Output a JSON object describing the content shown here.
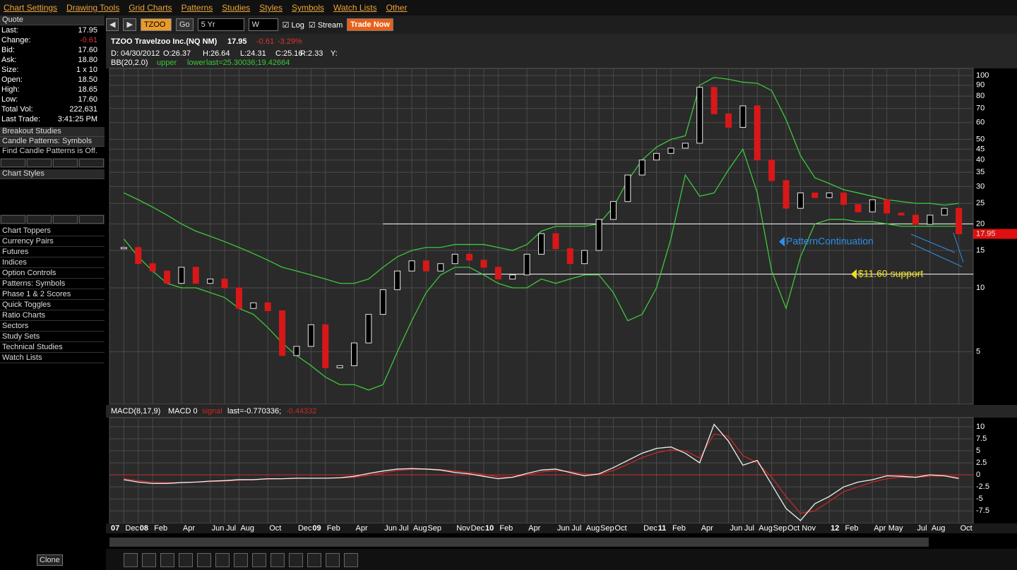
{
  "menu": [
    "Chart Settings",
    "Drawing Tools",
    "Grid Charts",
    "Patterns",
    "Studies",
    "Styles",
    "Symbols",
    "Watch Lists",
    "Other"
  ],
  "toolbar": {
    "symbol": "TZOO",
    "go": "Go",
    "period": "5 Yr",
    "interval": "W",
    "log": "Log",
    "stream": "Stream",
    "trade": "Trade Now"
  },
  "sidebar": {
    "quote_title": "Quote",
    "quote": [
      {
        "label": "Last:",
        "value": "17.95"
      },
      {
        "label": "Change:",
        "value": "-0.61"
      },
      {
        "label": "Bid:",
        "value": "17.60"
      },
      {
        "label": "Ask:",
        "value": "18.80"
      },
      {
        "label": "Size:",
        "value": "1 x 10"
      },
      {
        "label": "Open:",
        "value": "18.50"
      },
      {
        "label": "High:",
        "value": "18.65"
      },
      {
        "label": "Low:",
        "value": "17.60"
      },
      {
        "label": "Total Vol:",
        "value": "222,631"
      },
      {
        "label": "Last Trade:",
        "value": "3:41:25 PM"
      }
    ],
    "breakout": "Breakout Studies",
    "candle": "Candle Patterns: Symbols",
    "candle_note": "Find Candle Patterns is Off.",
    "styles": "Chart Styles",
    "items": [
      "Chart Toppers",
      "Currency Pairs",
      "Futures",
      "Indices",
      "Option Controls",
      "Patterns: Symbols",
      "Phase 1 & 2 Scores",
      "Quick Toggles",
      "Ratio Charts",
      "Sectors",
      "Study Sets",
      "Technical Studies",
      "Watch Lists"
    ],
    "clone": "Clone"
  },
  "chart": {
    "type": "candlestick",
    "title": "TZOO Travelzoo Inc.(NQ NM)",
    "price": "17.95",
    "change": "-0.61",
    "change_pct": "-3.29%",
    "info": [
      "D: 04/30/2012",
      "O:26.37",
      "H:26.64",
      "L:24.31",
      "C:25.16",
      "R:2.33",
      "Y:"
    ],
    "bb": {
      "name": "BB(20,2.0)",
      "upper": "upper",
      "lower": "lower",
      "last": "last=25.30036;19.42664"
    },
    "macd_header": {
      "name": "MACD(8,17,9)",
      "macd": "MACD 0",
      "signal": "signal",
      "last": "last=-0.770336;",
      "last_signal": "-0.44332"
    },
    "log": true,
    "grid": true,
    "x": [
      "2007-12",
      "2008-01",
      "2008-02",
      "2008-03",
      "2008-04",
      "2008-05",
      "2008-06",
      "2008-07",
      "2008-08",
      "2008-09",
      "2008-10",
      "2008-11",
      "2008-12",
      "2009-01",
      "2009-02",
      "2009-03",
      "2009-04",
      "2009-05",
      "2009-06",
      "2009-07",
      "2009-08",
      "2009-09",
      "2009-10",
      "2009-11",
      "2009-12",
      "2010-01",
      "2010-02",
      "2010-03",
      "2010-04",
      "2010-05",
      "2010-06",
      "2010-07",
      "2010-08",
      "2010-09",
      "2010-10",
      "2010-11",
      "2010-12",
      "2011-01",
      "2011-02",
      "2011-03",
      "2011-04",
      "2011-05",
      "2011-06",
      "2011-07",
      "2011-08",
      "2011-09",
      "2011-10",
      "2011-11",
      "2011-12",
      "2012-01",
      "2012-02",
      "2012-03",
      "2012-04",
      "2012-05",
      "2012-06",
      "2012-07",
      "2012-08",
      "2012-09",
      "2012-10"
    ],
    "close": [
      15.5,
      13,
      12,
      10.5,
      12.5,
      10.5,
      11,
      10,
      8,
      8.5,
      7.8,
      4.8,
      5.3,
      6.7,
      4.2,
      4.3,
      5.5,
      7.5,
      9.8,
      12,
      13.4,
      12,
      13,
      14.4,
      13.5,
      12.5,
      11,
      11.5,
      14.4,
      18,
      15.3,
      13,
      15,
      21,
      25.5,
      34,
      40,
      43,
      45.5,
      48,
      88,
      66,
      57,
      72,
      40,
      32,
      23.7,
      28,
      26.6,
      28,
      24.7,
      22.8,
      26,
      22.5,
      22,
      19.9,
      22,
      23.7,
      17.95
    ],
    "bb_upper": [
      28,
      26,
      24,
      22,
      20,
      18.5,
      17.5,
      16.5,
      15.5,
      14.5,
      13.5,
      12.5,
      12,
      11.5,
      11,
      10.5,
      10.5,
      11,
      12.5,
      14,
      15,
      15.5,
      15.5,
      16,
      16,
      16,
      15.5,
      15,
      16,
      18.5,
      19.5,
      19.5,
      19.5,
      20,
      24,
      32,
      40,
      46,
      50,
      52,
      90,
      98,
      96,
      93,
      92,
      85,
      62,
      42,
      33,
      31,
      29,
      28,
      27,
      26,
      25.5,
      25,
      25,
      24.5,
      25
    ],
    "bb_lower": [
      17,
      14,
      12,
      10.5,
      10,
      10,
      9.5,
      9,
      8,
      7.5,
      6.5,
      5.5,
      4.8,
      4.3,
      3.8,
      3.5,
      3.5,
      3.3,
      3.5,
      5,
      7,
      9.5,
      11.5,
      12.5,
      12.5,
      11.5,
      10.5,
      10,
      10,
      11,
      10.5,
      11,
      11.5,
      11.5,
      9.5,
      7,
      7.5,
      10,
      17,
      34,
      27,
      28,
      36,
      45,
      28,
      12,
      8,
      14,
      20,
      21,
      21,
      20.5,
      20.5,
      20,
      19.5,
      19.5,
      19.5,
      19.5,
      19.5
    ],
    "colors": {
      "up": "#e8e8e8",
      "down": "#d81818",
      "bb": "#3cc83c",
      "macd": "#f0f0f0",
      "signal": "#c82828"
    },
    "ylim": [
      2.83,
      108
    ],
    "yticks": [
      5,
      10,
      15,
      20,
      25,
      30,
      35,
      40,
      45,
      50,
      60,
      70,
      80,
      90,
      100
    ],
    "xlim": [
      "2007-11",
      "2012-11"
    ],
    "xticks": [
      {
        "value": "2007-11",
        "label": "07"
      },
      {
        "value": "2007-12",
        "label": "Dec"
      },
      {
        "value": "2008-01",
        "label": "08"
      },
      {
        "value": "2008-02",
        "label": "Feb"
      },
      {
        "value": "2008-04",
        "label": "Apr"
      },
      {
        "value": "2008-06",
        "label": "Jun"
      },
      {
        "value": "2008-07",
        "label": "Jul"
      },
      {
        "value": "2008-08",
        "label": "Aug"
      },
      {
        "value": "2008-10",
        "label": "Oct"
      },
      {
        "value": "2008-12",
        "label": "Dec"
      },
      {
        "value": "2009-01",
        "label": "09"
      },
      {
        "value": "2009-02",
        "label": "Feb"
      },
      {
        "value": "2009-04",
        "label": "Apr"
      },
      {
        "value": "2009-06",
        "label": "Jun"
      },
      {
        "value": "2009-07",
        "label": "Jul"
      },
      {
        "value": "2009-08",
        "label": "Aug"
      },
      {
        "value": "2009-09",
        "label": "Sep"
      },
      {
        "value": "2009-11",
        "label": "Nov"
      },
      {
        "value": "2009-12",
        "label": "Dec"
      },
      {
        "value": "2010-01",
        "label": "10"
      },
      {
        "value": "2010-02",
        "label": "Feb"
      },
      {
        "value": "2010-04",
        "label": "Apr"
      },
      {
        "value": "2010-06",
        "label": "Jun"
      },
      {
        "value": "2010-07",
        "label": "Jul"
      },
      {
        "value": "2010-08",
        "label": "Aug"
      },
      {
        "value": "2010-09",
        "label": "Sep"
      },
      {
        "value": "2010-10",
        "label": "Oct"
      },
      {
        "value": "2010-12",
        "label": "Dec"
      },
      {
        "value": "2011-01",
        "label": "11"
      },
      {
        "value": "2011-02",
        "label": "Feb"
      },
      {
        "value": "2011-04",
        "label": "Apr"
      },
      {
        "value": "2011-06",
        "label": "Jun"
      },
      {
        "value": "2011-07",
        "label": "Jul"
      },
      {
        "value": "2011-08",
        "label": "Aug"
      },
      {
        "value": "2011-09",
        "label": "Sep"
      },
      {
        "value": "2011-10",
        "label": "Oct"
      },
      {
        "value": "2011-11",
        "label": "Nov"
      },
      {
        "value": "2012-01",
        "label": "12"
      },
      {
        "value": "2012-02",
        "label": "Feb"
      },
      {
        "value": "2012-04",
        "label": "Apr"
      },
      {
        "value": "2012-05",
        "label": "May"
      },
      {
        "value": "2012-07",
        "label": "Jul"
      },
      {
        "value": "2012-08",
        "label": "Aug"
      },
      {
        "value": "2012-10",
        "label": "Oct"
      }
    ],
    "lines": [
      {
        "value": 20,
        "from": "2009-06"
      },
      {
        "value": 11.6,
        "from": "2009-11"
      }
    ],
    "annotations": [
      {
        "text": "PatternContinuation",
        "color": "#2e8ee8",
        "at": "2011-10",
        "value": 16.5
      },
      {
        "text": "$11.60 support",
        "color": "#f0e020",
        "at": "2012-03",
        "value": 11.6
      }
    ],
    "last_tag": "17.95",
    "macd": [
      -1,
      -1.5,
      -1.8,
      -1.8,
      -1.6,
      -1.5,
      -1.3,
      -1.2,
      -1,
      -1,
      -0.8,
      -0.8,
      -0.7,
      -0.7,
      -0.7,
      -0.6,
      -0.3,
      0.3,
      0.8,
      1.2,
      1.3,
      1.2,
      1,
      0.5,
      0.2,
      -0.3,
      -0.8,
      -0.5,
      0.3,
      1,
      1.2,
      0.5,
      -0.2,
      0.2,
      1.5,
      3,
      4.5,
      5.5,
      5.8,
      4.5,
      2.5,
      10.5,
      7,
      2,
      3,
      -2,
      -7,
      -9.5,
      -6,
      -4.5,
      -2.5,
      -1.5,
      -1,
      -0.2,
      -0.3,
      -0.5,
      0,
      -0.2,
      -0.77
    ],
    "signal": [
      -0.8,
      -1.2,
      -1.5,
      -1.6,
      -1.6,
      -1.5,
      -1.4,
      -1.3,
      -1.1,
      -1,
      -0.9,
      -0.8,
      -0.75,
      -0.7,
      -0.7,
      -0.65,
      -0.5,
      -0.1,
      0.4,
      0.9,
      1.1,
      1.2,
      1.1,
      0.8,
      0.5,
      0.1,
      -0.4,
      -0.5,
      0,
      0.6,
      0.9,
      0.7,
      0.2,
      0.1,
      0.9,
      2.2,
      3.6,
      4.6,
      5.2,
      5,
      3.5,
      8.5,
      8,
      4,
      2.5,
      -0.5,
      -4.5,
      -8,
      -7.5,
      -5.5,
      -3.5,
      -2.5,
      -1.5,
      -0.8,
      -0.5,
      -0.5,
      -0.3,
      -0.2,
      -0.5
    ],
    "y2lim": [
      -10.1,
      11.9
    ],
    "y2ticks": [
      10,
      7.5,
      5,
      2.5,
      0,
      -2.5,
      -5,
      -7.5
    ]
  }
}
